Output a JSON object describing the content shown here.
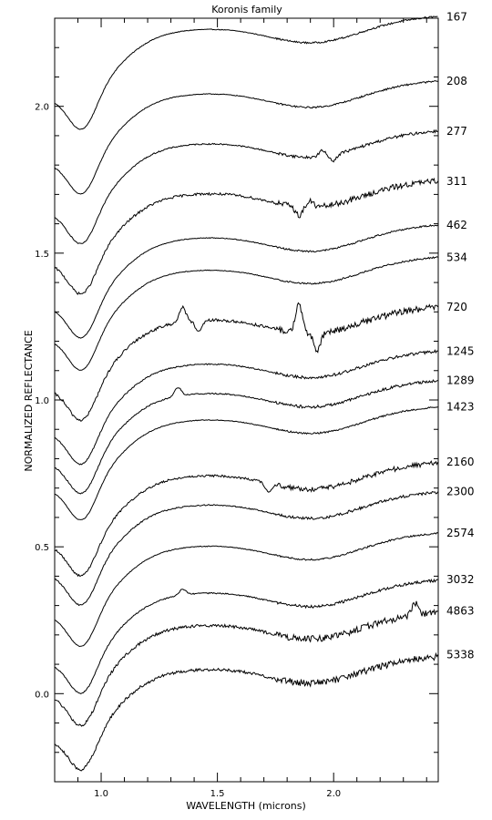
{
  "chart_data": {
    "type": "line",
    "title": "Koronis family",
    "xlabel": "WAVELENGTH (microns)",
    "ylabel": "NORMALIZED REFLECTANCE",
    "xlim": [
      0.8,
      2.45
    ],
    "ylim": [
      -0.3,
      2.3
    ],
    "xticks": [
      1.0,
      1.5,
      2.0
    ],
    "xtick_labels": [
      "1.0",
      "1.5",
      "2.0"
    ],
    "yticks": [
      0.0,
      0.5,
      1.0,
      1.5,
      2.0
    ],
    "ytick_labels": [
      "0.0",
      "0.5",
      "1.0",
      "1.5",
      "2.0"
    ],
    "grid": false,
    "legend": "labels at right end of each curve",
    "series": [
      {
        "name": "167",
        "offset": 2.09,
        "noise": 0.35,
        "features": []
      },
      {
        "name": "208",
        "offset": 1.87,
        "noise": 0.35,
        "features": []
      },
      {
        "name": "277",
        "offset": 1.7,
        "noise": 0.6,
        "features": [
          [
            1.95,
            0.02
          ],
          [
            2.0,
            -0.02
          ]
        ]
      },
      {
        "name": "311",
        "offset": 1.53,
        "noise": 1.2,
        "features": [
          [
            1.85,
            -0.03
          ],
          [
            1.9,
            0.02
          ]
        ]
      },
      {
        "name": "462",
        "offset": 1.38,
        "noise": 0.35,
        "features": []
      },
      {
        "name": "534",
        "offset": 1.27,
        "noise": 0.35,
        "features": []
      },
      {
        "name": "720",
        "offset": 1.1,
        "noise": 1.4,
        "features": [
          [
            1.35,
            0.05
          ],
          [
            1.42,
            -0.04
          ],
          [
            1.85,
            0.1
          ],
          [
            1.93,
            -0.06
          ]
        ]
      },
      {
        "name": "1245",
        "offset": 0.95,
        "noise": 0.6,
        "features": []
      },
      {
        "name": "1289",
        "offset": 0.85,
        "noise": 0.6,
        "features": [
          [
            1.33,
            0.03
          ]
        ]
      },
      {
        "name": "1423",
        "offset": 0.76,
        "noise": 0.35,
        "features": []
      },
      {
        "name": "2160",
        "offset": 0.57,
        "noise": 1.0,
        "features": [
          [
            1.72,
            -0.03
          ]
        ]
      },
      {
        "name": "2300",
        "offset": 0.47,
        "noise": 0.6,
        "features": []
      },
      {
        "name": "2574",
        "offset": 0.33,
        "noise": 0.35,
        "features": []
      },
      {
        "name": "3032",
        "offset": 0.17,
        "noise": 0.6,
        "features": [
          [
            1.35,
            0.02
          ]
        ]
      },
      {
        "name": "4863",
        "offset": 0.06,
        "noise": 1.4,
        "features": [
          [
            2.35,
            0.04
          ]
        ]
      },
      {
        "name": "5338",
        "offset": -0.09,
        "noise": 1.4,
        "features": []
      }
    ]
  }
}
